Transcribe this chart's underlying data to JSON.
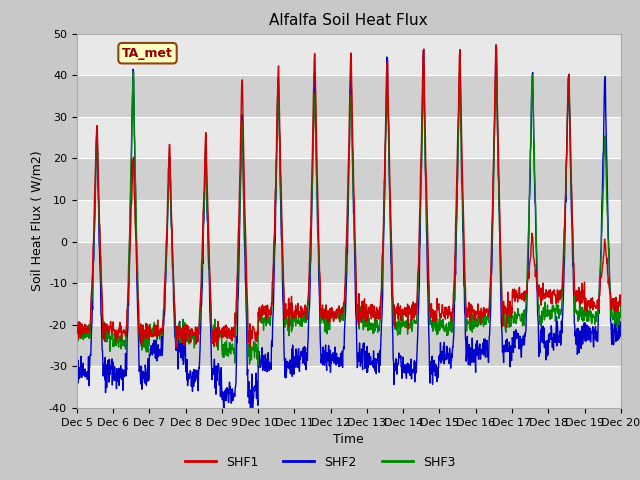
{
  "title": "Alfalfa Soil Heat Flux",
  "ylabel": "Soil Heat Flux ( W/m2)",
  "xlabel": "Time",
  "ylim": [
    -40,
    50
  ],
  "yticks": [
    -40,
    -30,
    -20,
    -10,
    0,
    10,
    20,
    30,
    40,
    50
  ],
  "xtick_labels": [
    "Dec 5",
    "Dec 6",
    "Dec 7",
    "Dec 8",
    "Dec 9",
    "Dec 10",
    "Dec 11",
    "Dec 12",
    "Dec 13",
    "Dec 14",
    "Dec 15",
    "Dec 16",
    "Dec 17",
    "Dec 18",
    "Dec 19",
    "Dec 20"
  ],
  "colors": {
    "SHF1": "#cc0000",
    "SHF2": "#0000cc",
    "SHF3": "#008800"
  },
  "legend_label": "TA_met",
  "band_colors": [
    "#e8e8e8",
    "#d8d8d8"
  ],
  "fig_facecolor": "#c8c8c8",
  "axes_facecolor": "#e0e0e0",
  "linewidth": 1.0,
  "title_fontsize": 11,
  "axis_fontsize": 9,
  "tick_fontsize": 8
}
